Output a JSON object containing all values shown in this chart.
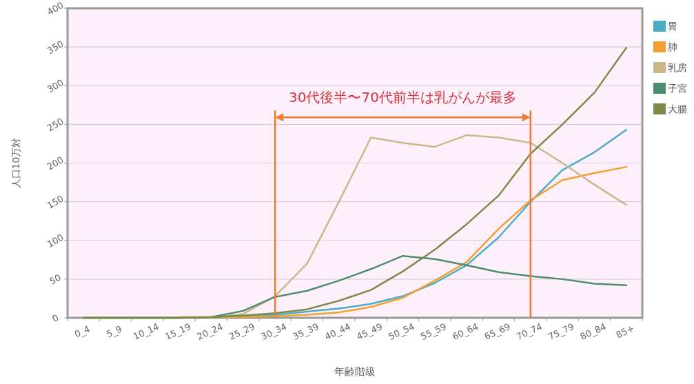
{
  "chart_data": {
    "type": "line",
    "xlabel": "年齢階級",
    "ylabel": "人口10万対",
    "categories": [
      "0_4",
      "5_9",
      "10_14",
      "15_19",
      "20_24",
      "25_29",
      "30_34",
      "35_39",
      "40_44",
      "45_49",
      "50_54",
      "55_59",
      "60_64",
      "65_69",
      "70_74",
      "75_79",
      "80_84",
      "85+"
    ],
    "series": [
      {
        "name": "胃",
        "color": "#4bacc6",
        "values": [
          null,
          null,
          null,
          null,
          1,
          2,
          4,
          8,
          12,
          18,
          28,
          45,
          68,
          104,
          150,
          191,
          214,
          243
        ]
      },
      {
        "name": "肺",
        "color": "#f0a030",
        "values": [
          null,
          null,
          null,
          1,
          1,
          1,
          2,
          4,
          7,
          14,
          26,
          48,
          72,
          115,
          152,
          178,
          187,
          195
        ]
      },
      {
        "name": "乳房",
        "color": "#c8b88a",
        "values": [
          0,
          0,
          0,
          0,
          1,
          5,
          28,
          70,
          150,
          233,
          226,
          221,
          236,
          233,
          226,
          200,
          172,
          146
        ]
      },
      {
        "name": "子宮",
        "color": "#4e8c6e",
        "values": [
          0,
          0,
          0,
          0,
          1,
          9,
          27,
          35,
          48,
          63,
          80,
          76,
          68,
          59,
          54,
          50,
          44,
          42
        ]
      },
      {
        "name": "大腸",
        "color": "#7b8c4a",
        "values": [
          0,
          0,
          0,
          0,
          1,
          3,
          6,
          11,
          22,
          36,
          60,
          88,
          121,
          158,
          212,
          250,
          291,
          349
        ]
      }
    ],
    "ylim": [
      0,
      400
    ],
    "yticks": [
      0,
      50,
      100,
      150,
      200,
      250,
      300,
      350,
      400
    ],
    "grid": "y",
    "legend": "right",
    "ref_lines": [
      {
        "axis": "x",
        "value": "30_34",
        "color": "#ed7d31"
      },
      {
        "axis": "x",
        "value": "70_74",
        "color": "#ed7d31"
      }
    ],
    "annotations": [
      "30代後半〜70代前半は乳がんが最多"
    ]
  }
}
